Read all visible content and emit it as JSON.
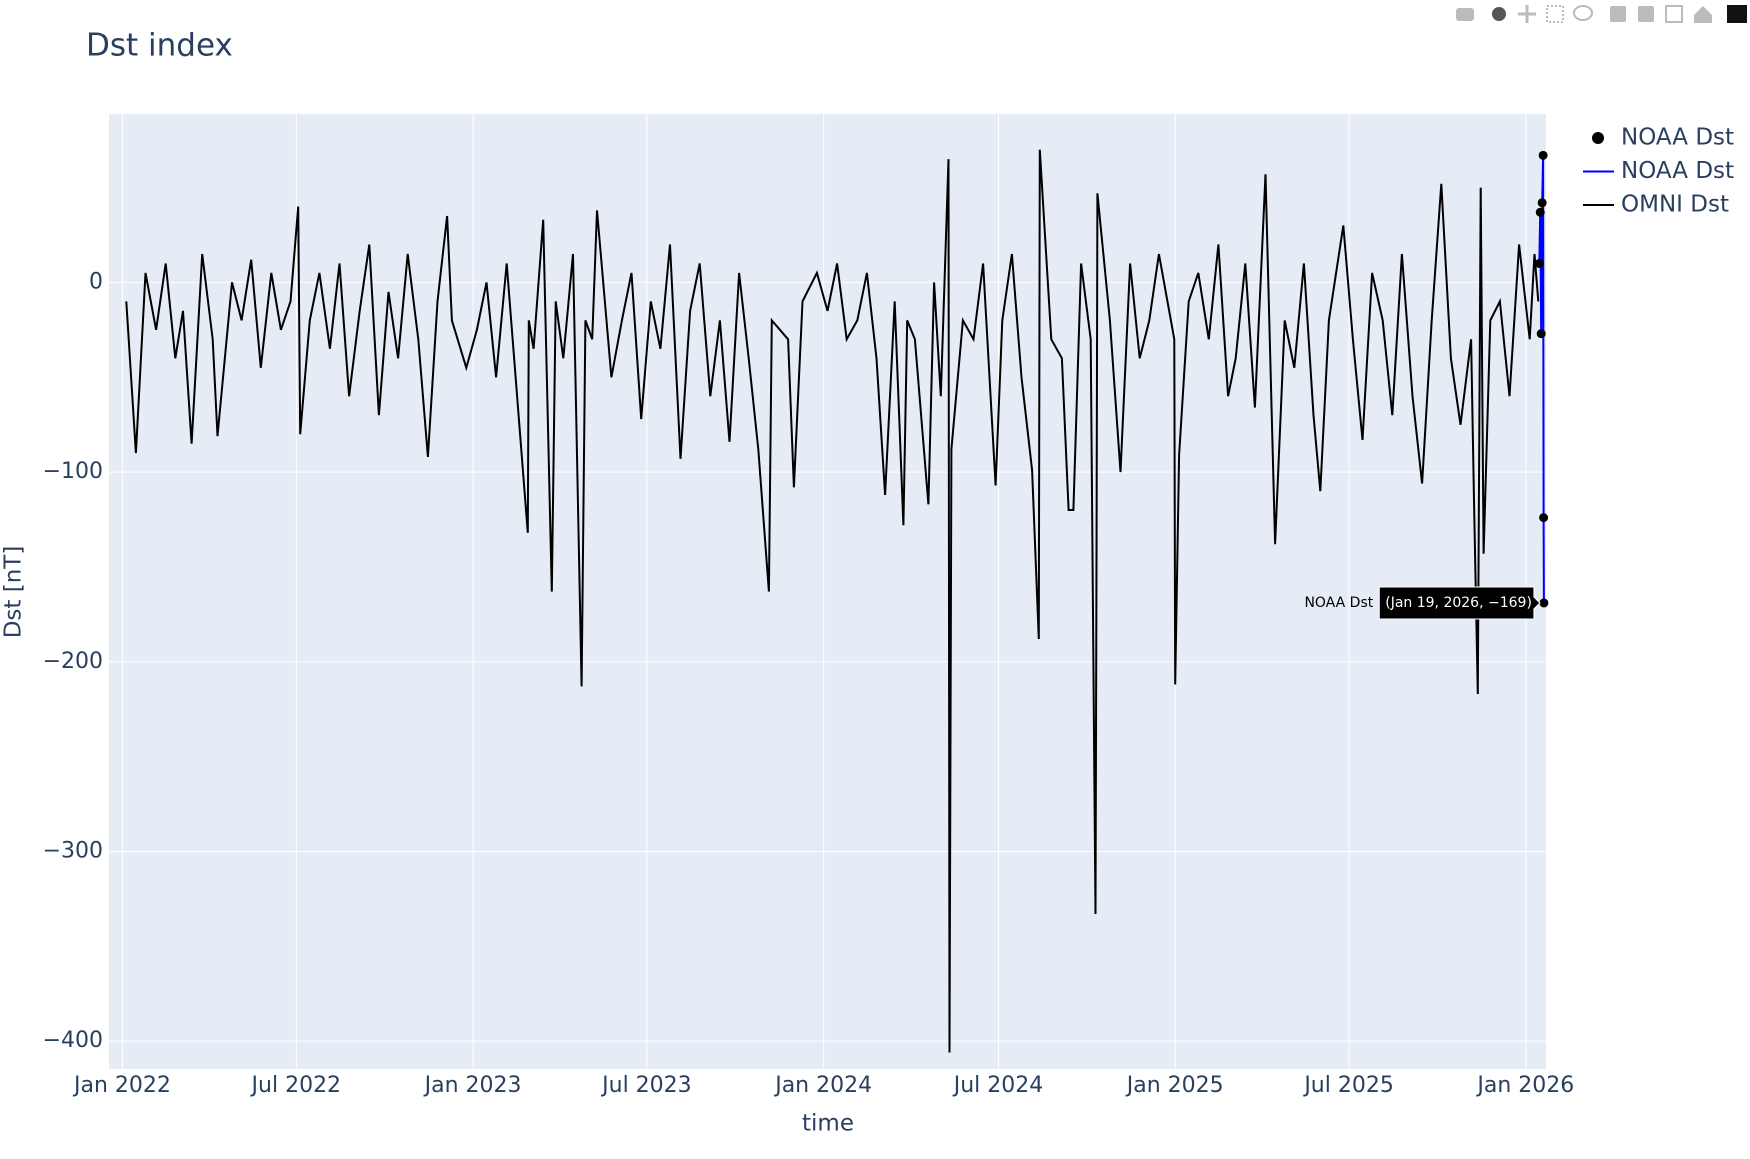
{
  "chart_data": {
    "type": "line",
    "title": "Dst index",
    "x_label": "time",
    "y_label": "Dst [nT]",
    "xlim": [
      "2021-12-18",
      "2026-01-22"
    ],
    "ylim": [
      -414.7,
      88.8
    ],
    "grid": true,
    "legend": "right",
    "xticks": [
      {
        "value": "2022-01-01",
        "label": "Jan 2022"
      },
      {
        "value": "2022-07-01",
        "label": "Jul 2022"
      },
      {
        "value": "2023-01-01",
        "label": "Jan 2023"
      },
      {
        "value": "2023-07-01",
        "label": "Jul 2023"
      },
      {
        "value": "2024-01-01",
        "label": "Jan 2024"
      },
      {
        "value": "2024-07-01",
        "label": "Jul 2024"
      },
      {
        "value": "2025-01-01",
        "label": "Jan 2025"
      },
      {
        "value": "2025-07-01",
        "label": "Jul 2025"
      },
      {
        "value": "2026-01-01",
        "label": "Jan 2026"
      }
    ],
    "yticks": [
      {
        "value": -400,
        "label": "−400"
      },
      {
        "value": -300,
        "label": "−300"
      },
      {
        "value": -200,
        "label": "−200"
      },
      {
        "value": -100,
        "label": "−100"
      },
      0
    ],
    "hover": {
      "name": "NOAA Dst",
      "text": "(Jan 19, 2026, −169)"
    },
    "series": [
      {
        "name": "NOAA Dst",
        "mode": "markers",
        "color": "#000000",
        "x": [
          "2026-01-15T00:00",
          "2026-01-16T00:00",
          "2026-01-17T00:00",
          "2026-01-18T00:00",
          "2026-01-19T00:00",
          "2026-01-19T12:00",
          "2026-01-19T20:00"
        ],
        "values": [
          10,
          37,
          -27,
          42,
          67,
          -124,
          -169
        ]
      },
      {
        "name": "NOAA Dst",
        "mode": "lines",
        "color": "#0000ff",
        "x": [
          "2026-01-15T00:00",
          "2026-01-16T00:00",
          "2026-01-17T00:00",
          "2026-01-18T00:00",
          "2026-01-19T00:00",
          "2026-01-19T12:00",
          "2026-01-19T20:00"
        ],
        "values": [
          10,
          37,
          -27,
          42,
          67,
          -124,
          -169
        ]
      },
      {
        "name": "OMNI Dst",
        "mode": "lines",
        "color": "#000000",
        "x": [
          "2022-01-05",
          "2022-01-15",
          "2022-01-25",
          "2022-02-05",
          "2022-02-15",
          "2022-02-25",
          "2022-03-05",
          "2022-03-14",
          "2022-03-25",
          "2022-04-05",
          "2022-04-10",
          "2022-04-25",
          "2022-05-05",
          "2022-05-15",
          "2022-05-25",
          "2022-06-05",
          "2022-06-15",
          "2022-06-25",
          "2022-07-03",
          "2022-07-05",
          "2022-07-15",
          "2022-07-25",
          "2022-08-05",
          "2022-08-15",
          "2022-08-25",
          "2022-09-05",
          "2022-09-15",
          "2022-09-25",
          "2022-10-05",
          "2022-10-15",
          "2022-10-25",
          "2022-11-05",
          "2022-11-15",
          "2022-11-25",
          "2022-12-05",
          "2022-12-10",
          "2022-12-25",
          "2023-01-05",
          "2023-01-15",
          "2023-01-25",
          "2023-02-05",
          "2023-02-27",
          "2023-02-28",
          "2023-03-05",
          "2023-03-15",
          "2023-03-24",
          "2023-03-28",
          "2023-04-05",
          "2023-04-15",
          "2023-04-24",
          "2023-04-28",
          "2023-05-05",
          "2023-05-10",
          "2023-05-25",
          "2023-06-05",
          "2023-06-15",
          "2023-06-25",
          "2023-07-05",
          "2023-07-15",
          "2023-07-25",
          "2023-08-05",
          "2023-08-15",
          "2023-08-25",
          "2023-09-05",
          "2023-09-15",
          "2023-09-25",
          "2023-10-05",
          "2023-10-15",
          "2023-10-25",
          "2023-11-05",
          "2023-11-08",
          "2023-11-25",
          "2023-12-01",
          "2023-12-10",
          "2023-12-25",
          "2024-01-05",
          "2024-01-15",
          "2024-01-25",
          "2024-02-05",
          "2024-02-15",
          "2024-02-25",
          "2024-03-05",
          "2024-03-15",
          "2024-03-24",
          "2024-03-28",
          "2024-04-05",
          "2024-04-19",
          "2024-04-25",
          "2024-05-02",
          "2024-05-10",
          "2024-05-11",
          "2024-05-13",
          "2024-05-25",
          "2024-06-05",
          "2024-06-15",
          "2024-06-28",
          "2024-07-05",
          "2024-07-15",
          "2024-07-25",
          "2024-08-05",
          "2024-08-12",
          "2024-08-13",
          "2024-08-25",
          "2024-09-05",
          "2024-09-12",
          "2024-09-17",
          "2024-09-25",
          "2024-10-05",
          "2024-10-10",
          "2024-10-11",
          "2024-10-12",
          "2024-10-25",
          "2024-11-05",
          "2024-11-15",
          "2024-11-25",
          "2024-12-05",
          "2024-12-15",
          "2024-12-31",
          "2025-01-01",
          "2025-01-05",
          "2025-01-15",
          "2025-01-25",
          "2025-02-05",
          "2025-02-15",
          "2025-02-25",
          "2025-03-05",
          "2025-03-15",
          "2025-03-25",
          "2025-04-05",
          "2025-04-15",
          "2025-04-25",
          "2025-05-05",
          "2025-05-15",
          "2025-05-25",
          "2025-06-01",
          "2025-06-10",
          "2025-06-25",
          "2025-07-05",
          "2025-07-15",
          "2025-07-25",
          "2025-08-05",
          "2025-08-15",
          "2025-08-25",
          "2025-09-05",
          "2025-09-15",
          "2025-09-25",
          "2025-10-05",
          "2025-10-15",
          "2025-10-25",
          "2025-11-05",
          "2025-11-08",
          "2025-11-12",
          "2025-11-15",
          "2025-11-18",
          "2025-11-25",
          "2025-12-05",
          "2025-12-15",
          "2025-12-25",
          "2026-01-05",
          "2026-01-10",
          "2026-01-14"
        ],
        "values": [
          -10,
          -90,
          5,
          -25,
          10,
          -40,
          -15,
          -85,
          15,
          -30,
          -81,
          0,
          -20,
          12,
          -45,
          5,
          -25,
          -10,
          40,
          -80,
          -20,
          5,
          -35,
          10,
          -60,
          -15,
          20,
          -70,
          -5,
          -40,
          15,
          -30,
          -92,
          -10,
          35,
          -20,
          -45,
          -25,
          0,
          -50,
          10,
          -132,
          -20,
          -35,
          33,
          -163,
          -10,
          -40,
          15,
          -213,
          -20,
          -30,
          38,
          -50,
          -20,
          5,
          -72,
          -10,
          -35,
          20,
          -93,
          -15,
          10,
          -60,
          -20,
          -84,
          5,
          -40,
          -88,
          -163,
          -20,
          -30,
          -108,
          -10,
          5,
          -15,
          10,
          -30,
          -20,
          5,
          -40,
          -112,
          -10,
          -128,
          -20,
          -30,
          -117,
          0,
          -60,
          65,
          -406,
          -88,
          -20,
          -30,
          10,
          -107,
          -20,
          15,
          -50,
          -99,
          -188,
          70,
          -30,
          -40,
          -120,
          -120,
          10,
          -30,
          -333,
          -148,
          47,
          -20,
          -100,
          10,
          -40,
          -20,
          15,
          -30,
          -212,
          -91,
          -10,
          5,
          -30,
          20,
          -60,
          -40,
          10,
          -66,
          57,
          -138,
          -20,
          -45,
          10,
          -70,
          -110,
          -20,
          30,
          -30,
          -83,
          5,
          -20,
          -70,
          15,
          -60,
          -106,
          -20,
          52,
          -40,
          -75,
          -30,
          -115,
          -217,
          50,
          -143,
          -20,
          -10,
          -60,
          20,
          -30,
          15,
          -10
        ]
      }
    ]
  }
}
